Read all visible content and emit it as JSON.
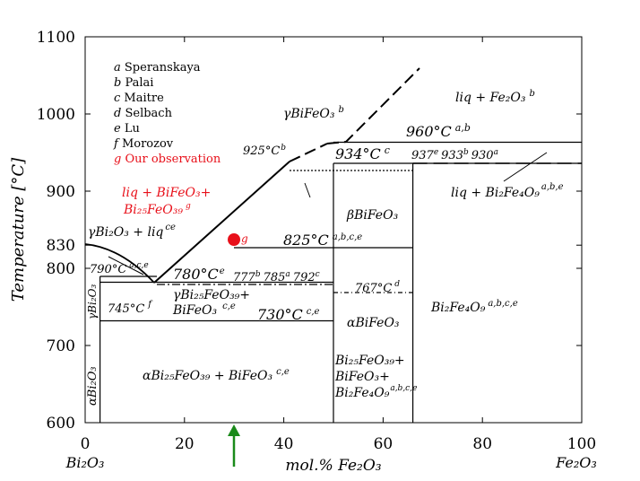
{
  "axes": {
    "xlabel": "mol.% Fe₂O₃",
    "ylabel": "Temperature [°C]",
    "x_ticks": [
      "0",
      "20",
      "40",
      "60",
      "80",
      "100"
    ],
    "y_ticks": [
      "600",
      "700",
      "800",
      "830",
      "900",
      "1000",
      "1100"
    ],
    "x_left_end": "Bi₂O₃",
    "x_right_end": "Fe₂O₃"
  },
  "legend": [
    {
      "key": "a",
      "text": "Speranskaya"
    },
    {
      "key": "b",
      "text": "Palai"
    },
    {
      "key": "c",
      "text": "Maitre"
    },
    {
      "key": "d",
      "text": "Selbach"
    },
    {
      "key": "e",
      "text": "Lu"
    },
    {
      "key": "f",
      "text": "Morozov"
    },
    {
      "key": "g",
      "text": "Our observation"
    }
  ],
  "labels": {
    "liq_fe2o3": "liq + Fe₂O₃",
    "liq_fe2o3_sup": "b",
    "t960": "960°C",
    "t960_sup": "a,b",
    "gamma_bifeo3": "γBiFeO₃",
    "gamma_bifeo3_sup": "b",
    "t925": "925°C",
    "t925_sup": "b",
    "t934": "934°C",
    "t934_sup": "c",
    "t937": "937",
    "t937_sup": "e",
    "t933": "933",
    "t933_sup": "b",
    "t930": "930",
    "t930_sup": "a",
    "liq_bi2fe4o9": "liq + Bi₂Fe₄O₉",
    "liq_bi2fe4o9_sup": "a,b,e",
    "red_line1": "liq + BiFeO₃+",
    "red_line2": "Bi₂₅FeO₃₉",
    "red_sup": "g",
    "beta_bifeo3": "βBiFeO₃",
    "gamma_bi2o3_liq": "γBi₂O₃ + liq",
    "gamma_bi2o3_liq_sup": "ce",
    "t825": "825°C",
    "t825_sup": "a,b,c,e",
    "dot_g": "g",
    "t790": "790°C",
    "t790_sup": "a,c,e",
    "t780": "780°C",
    "t780_sup": "e",
    "t777": "777",
    "t777_sup": "b",
    "t785": "785",
    "t785_sup": "a",
    "t792": "792",
    "t792_sup": "c",
    "gamma_bi25_l1": "γBi₂₅FeO₃₉+",
    "gamma_bi25_l2": "BiFeO₃",
    "gamma_bi25_sup": "c,e",
    "t745": "745°C",
    "t745_sup": "f",
    "t767": "767°C",
    "t767_sup": "d",
    "t730": "730°C",
    "t730_sup": "c,e",
    "alpha_bifeo3": "αBiFeO₃",
    "bi2fe4o9": "Bi₂Fe₄O₉",
    "bi2fe4o9_sup": "a,b,c,e",
    "mix_l1": "Bi₂₅FeO₃₉+",
    "mix_l2": "BiFeO₃+",
    "mix_l3": "Bi₂Fe₄O₉",
    "mix_sup": "a,b,c,e",
    "alpha_bi25": "αBi₂₅FeO₃₉ + BiFeO₃",
    "alpha_bi25_sup": "c,e",
    "gamma_bi2o3_vert": "γBi₂O₃",
    "alpha_bi2o3_vert": "αBi₂O₃"
  },
  "colors": {
    "observation": "#e8101a",
    "arrow": "#1a8a1a"
  }
}
